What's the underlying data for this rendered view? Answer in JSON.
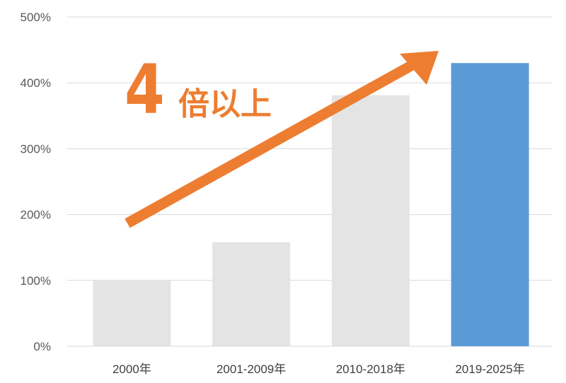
{
  "chart_data": {
    "type": "bar",
    "categories": [
      "2000年",
      "2001-2009年",
      "2010-2018年",
      "2019-2025年"
    ],
    "values": [
      100,
      158,
      381,
      430
    ],
    "yunit": "%",
    "ylim": [
      0,
      500
    ],
    "yticks": [
      "0%",
      "100%",
      "200%",
      "300%",
      "400%",
      "500%"
    ],
    "grid": true,
    "colors": {
      "default_bar": "#e4e4e4",
      "highlight_bar": "#5b9bd5",
      "highlight_index": 3,
      "arrow": "#ed7d31",
      "grid": "#d9d9d9"
    },
    "annotation": {
      "number": "4",
      "text": "倍以上"
    }
  }
}
